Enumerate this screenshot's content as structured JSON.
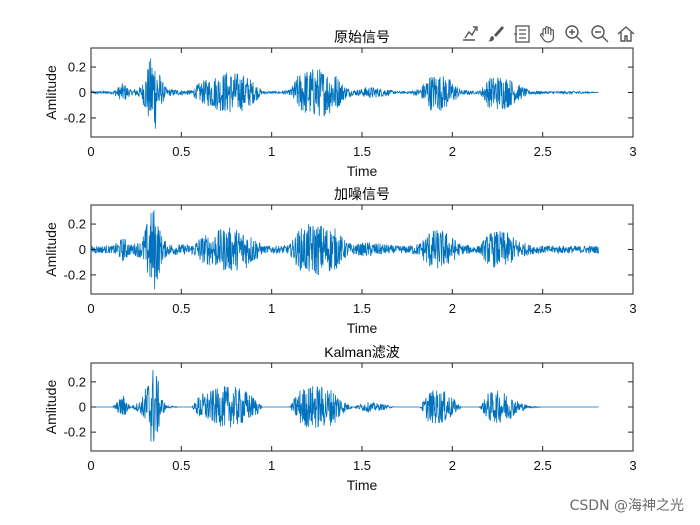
{
  "toolbar": {
    "icons": [
      "export-icon",
      "brush-icon",
      "datatip-icon",
      "pan-icon",
      "zoom-in-icon",
      "zoom-out-icon",
      "home-icon"
    ]
  },
  "watermark": "CSDN @海神之光",
  "chart_data": [
    {
      "type": "line",
      "title": "原始信号",
      "xlabel": "Time",
      "ylabel": "Amlitude",
      "xlim": [
        0,
        3
      ],
      "ylim": [
        -0.35,
        0.35
      ],
      "xticks": [
        "0",
        "0.5",
        "1",
        "1.5",
        "2",
        "2.5",
        "3"
      ],
      "yticks": [
        "0.2",
        "0",
        "-0.2"
      ],
      "ytick_values": [
        0.2,
        0,
        -0.2
      ],
      "grid": false,
      "color": "#0072BD",
      "series": [
        {
          "x": [
            0.0,
            0.12,
            0.18,
            0.22,
            0.28,
            0.31,
            0.33,
            0.35,
            0.37,
            0.39,
            0.42,
            0.5,
            0.56,
            0.6,
            0.68,
            0.75,
            0.8,
            0.86,
            0.92,
            0.95,
            1.05,
            1.1,
            1.15,
            1.2,
            1.25,
            1.3,
            1.35,
            1.4,
            1.45,
            1.5,
            1.53,
            1.58,
            1.63,
            1.68,
            1.75,
            1.82,
            1.87,
            1.92,
            1.97,
            2.0,
            2.05,
            2.15,
            2.2,
            2.25,
            2.3,
            2.35,
            2.42,
            2.5,
            2.6,
            2.7,
            2.81
          ],
          "amplitude": [
            0.01,
            0.01,
            0.08,
            0.02,
            0.05,
            0.2,
            0.28,
            0.34,
            0.22,
            0.1,
            0.03,
            0.02,
            0.02,
            0.08,
            0.13,
            0.17,
            0.16,
            0.14,
            0.06,
            0.01,
            0.01,
            0.02,
            0.15,
            0.19,
            0.2,
            0.18,
            0.16,
            0.06,
            0.02,
            0.03,
            0.05,
            0.04,
            0.03,
            0.01,
            0.01,
            0.03,
            0.14,
            0.15,
            0.13,
            0.09,
            0.02,
            0.01,
            0.12,
            0.14,
            0.13,
            0.08,
            0.02,
            0.01,
            0.01,
            0.01,
            0.0
          ]
        }
      ]
    },
    {
      "type": "line",
      "title": "加噪信号",
      "xlabel": "Time",
      "ylabel": "Amlitude",
      "xlim": [
        0,
        3
      ],
      "ylim": [
        -0.35,
        0.35
      ],
      "xticks": [
        "0",
        "0.5",
        "1",
        "1.5",
        "2",
        "2.5",
        "3"
      ],
      "yticks": [
        "0.2",
        "0",
        "-0.2"
      ],
      "ytick_values": [
        0.2,
        0,
        -0.2
      ],
      "grid": false,
      "color": "#0072BD",
      "series": [
        {
          "x": [
            0.0,
            0.12,
            0.18,
            0.22,
            0.28,
            0.31,
            0.33,
            0.35,
            0.37,
            0.39,
            0.42,
            0.5,
            0.56,
            0.6,
            0.68,
            0.75,
            0.8,
            0.86,
            0.92,
            0.95,
            1.05,
            1.1,
            1.15,
            1.2,
            1.25,
            1.3,
            1.35,
            1.4,
            1.45,
            1.5,
            1.53,
            1.58,
            1.63,
            1.68,
            1.75,
            1.82,
            1.87,
            1.92,
            1.97,
            2.0,
            2.05,
            2.15,
            2.2,
            2.25,
            2.3,
            2.35,
            2.42,
            2.5,
            2.6,
            2.7,
            2.81
          ],
          "amplitude": [
            0.03,
            0.03,
            0.1,
            0.04,
            0.07,
            0.22,
            0.3,
            0.35,
            0.24,
            0.12,
            0.05,
            0.04,
            0.04,
            0.1,
            0.14,
            0.18,
            0.17,
            0.15,
            0.08,
            0.03,
            0.03,
            0.04,
            0.16,
            0.2,
            0.21,
            0.19,
            0.17,
            0.08,
            0.04,
            0.05,
            0.06,
            0.05,
            0.04,
            0.03,
            0.03,
            0.05,
            0.15,
            0.16,
            0.14,
            0.1,
            0.04,
            0.03,
            0.13,
            0.15,
            0.14,
            0.09,
            0.04,
            0.03,
            0.03,
            0.03,
            0.03
          ]
        }
      ]
    },
    {
      "type": "line",
      "title": "Kalman滤波",
      "xlabel": "Time",
      "ylabel": "Amlitude",
      "xlim": [
        0,
        3
      ],
      "ylim": [
        -0.35,
        0.35
      ],
      "xticks": [
        "0",
        "0.5",
        "1",
        "1.5",
        "2",
        "2.5",
        "3"
      ],
      "yticks": [
        "0.2",
        "0",
        "-0.2"
      ],
      "ytick_values": [
        0.2,
        0,
        -0.2
      ],
      "grid": false,
      "color": "#0072BD",
      "series": [
        {
          "x": [
            0.0,
            0.12,
            0.18,
            0.22,
            0.28,
            0.31,
            0.33,
            0.35,
            0.37,
            0.39,
            0.42,
            0.5,
            0.56,
            0.6,
            0.68,
            0.75,
            0.8,
            0.86,
            0.92,
            0.95,
            1.05,
            1.1,
            1.15,
            1.2,
            1.25,
            1.3,
            1.35,
            1.4,
            1.45,
            1.5,
            1.53,
            1.58,
            1.63,
            1.68,
            1.75,
            1.82,
            1.87,
            1.92,
            1.97,
            2.0,
            2.05,
            2.15,
            2.2,
            2.25,
            2.3,
            2.35,
            2.42,
            2.5,
            2.6,
            2.7,
            2.81
          ],
          "amplitude": [
            0.0,
            0.0,
            0.1,
            0.0,
            0.06,
            0.2,
            0.29,
            0.35,
            0.23,
            0.08,
            0.01,
            0.0,
            0.0,
            0.1,
            0.14,
            0.17,
            0.16,
            0.13,
            0.06,
            0.0,
            0.0,
            0.0,
            0.14,
            0.17,
            0.18,
            0.16,
            0.14,
            0.05,
            0.0,
            0.03,
            0.04,
            0.03,
            0.02,
            0.0,
            0.0,
            0.0,
            0.13,
            0.14,
            0.12,
            0.08,
            0.0,
            0.0,
            0.12,
            0.13,
            0.12,
            0.06,
            0.01,
            0.0,
            0.0,
            0.0,
            0.0
          ]
        }
      ]
    }
  ]
}
